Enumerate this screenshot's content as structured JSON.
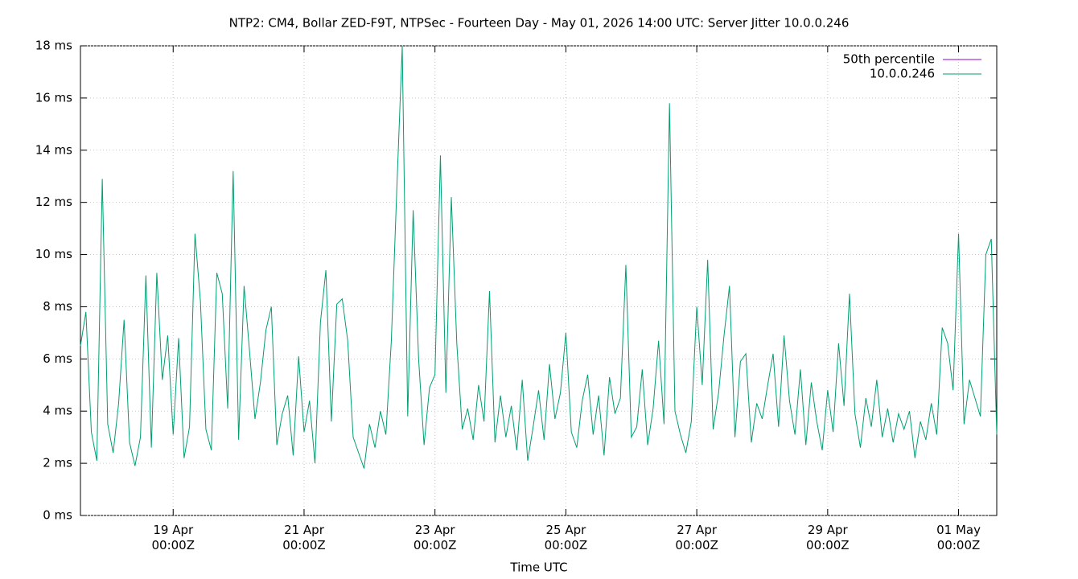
{
  "chart_data": {
    "type": "line",
    "title": "NTP2: CM4, Bollar ZED-F9T, NTPSec - Fourteen Day - May 01, 2026 14:00 UTC: Server Jitter 10.0.0.246",
    "x_label": "Time UTC",
    "xlim": [
      "2026-04-17T14:00Z",
      "2026-05-01T14:00Z"
    ],
    "xticks": [
      {
        "value": "2026-04-19T00:00Z",
        "label": "19 Apr\n00:00Z"
      },
      {
        "value": "2026-04-21T00:00Z",
        "label": "21 Apr\n00:00Z"
      },
      {
        "value": "2026-04-23T00:00Z",
        "label": "23 Apr\n00:00Z"
      },
      {
        "value": "2026-04-25T00:00Z",
        "label": "25 Apr\n00:00Z"
      },
      {
        "value": "2026-04-27T00:00Z",
        "label": "27 Apr\n00:00Z"
      },
      {
        "value": "2026-04-29T00:00Z",
        "label": "29 Apr\n00:00Z"
      },
      {
        "value": "2026-05-01T00:00Z",
        "label": "01 May\n00:00Z"
      }
    ],
    "ylim": [
      0,
      18
    ],
    "yticks": [
      {
        "value": 0,
        "label": "0 ms"
      },
      {
        "value": 2,
        "label": "2 ms"
      },
      {
        "value": 4,
        "label": "4 ms"
      },
      {
        "value": 6,
        "label": "6 ms"
      },
      {
        "value": 8,
        "label": "8 ms"
      },
      {
        "value": 10,
        "label": "10 ms"
      },
      {
        "value": 12,
        "label": "12 ms"
      },
      {
        "value": 14,
        "label": "14 ms"
      },
      {
        "value": 16,
        "label": "16 ms"
      },
      {
        "value": 18,
        "label": "18 ms"
      }
    ],
    "grid": true,
    "legend": "top-right",
    "x": [
      "2026-04-17T14:00Z",
      "2026-04-17T16:00Z",
      "2026-04-17T18:00Z",
      "2026-04-17T20:00Z",
      "2026-04-17T22:00Z",
      "2026-04-18T00:00Z",
      "2026-04-18T02:00Z",
      "2026-04-18T04:00Z",
      "2026-04-18T06:00Z",
      "2026-04-18T08:00Z",
      "2026-04-18T10:00Z",
      "2026-04-18T12:00Z",
      "2026-04-18T14:00Z",
      "2026-04-18T16:00Z",
      "2026-04-18T18:00Z",
      "2026-04-18T20:00Z",
      "2026-04-18T22:00Z",
      "2026-04-19T00:00Z",
      "2026-04-19T02:00Z",
      "2026-04-19T04:00Z",
      "2026-04-19T06:00Z",
      "2026-04-19T08:00Z",
      "2026-04-19T10:00Z",
      "2026-04-19T12:00Z",
      "2026-04-19T14:00Z",
      "2026-04-19T16:00Z",
      "2026-04-19T18:00Z",
      "2026-04-19T20:00Z",
      "2026-04-19T22:00Z",
      "2026-04-20T00:00Z",
      "2026-04-20T02:00Z",
      "2026-04-20T04:00Z",
      "2026-04-20T06:00Z",
      "2026-04-20T08:00Z",
      "2026-04-20T10:00Z",
      "2026-04-20T12:00Z",
      "2026-04-20T14:00Z",
      "2026-04-20T16:00Z",
      "2026-04-20T18:00Z",
      "2026-04-20T20:00Z",
      "2026-04-20T22:00Z",
      "2026-04-21T00:00Z",
      "2026-04-21T02:00Z",
      "2026-04-21T04:00Z",
      "2026-04-21T06:00Z",
      "2026-04-21T08:00Z",
      "2026-04-21T10:00Z",
      "2026-04-21T12:00Z",
      "2026-04-21T14:00Z",
      "2026-04-21T16:00Z",
      "2026-04-21T18:00Z",
      "2026-04-21T20:00Z",
      "2026-04-21T22:00Z",
      "2026-04-22T00:00Z",
      "2026-04-22T02:00Z",
      "2026-04-22T04:00Z",
      "2026-04-22T06:00Z",
      "2026-04-22T08:00Z",
      "2026-04-22T10:00Z",
      "2026-04-22T12:00Z",
      "2026-04-22T14:00Z",
      "2026-04-22T16:00Z",
      "2026-04-22T18:00Z",
      "2026-04-22T20:00Z",
      "2026-04-22T22:00Z",
      "2026-04-23T00:00Z",
      "2026-04-23T02:00Z",
      "2026-04-23T04:00Z",
      "2026-04-23T06:00Z",
      "2026-04-23T08:00Z",
      "2026-04-23T10:00Z",
      "2026-04-23T12:00Z",
      "2026-04-23T14:00Z",
      "2026-04-23T16:00Z",
      "2026-04-23T18:00Z",
      "2026-04-23T20:00Z",
      "2026-04-23T22:00Z",
      "2026-04-24T00:00Z",
      "2026-04-24T02:00Z",
      "2026-04-24T04:00Z",
      "2026-04-24T06:00Z",
      "2026-04-24T08:00Z",
      "2026-04-24T10:00Z",
      "2026-04-24T12:00Z",
      "2026-04-24T14:00Z",
      "2026-04-24T16:00Z",
      "2026-04-24T18:00Z",
      "2026-04-24T20:00Z",
      "2026-04-24T22:00Z",
      "2026-04-25T00:00Z",
      "2026-04-25T02:00Z",
      "2026-04-25T04:00Z",
      "2026-04-25T06:00Z",
      "2026-04-25T08:00Z",
      "2026-04-25T10:00Z",
      "2026-04-25T12:00Z",
      "2026-04-25T14:00Z",
      "2026-04-25T16:00Z",
      "2026-04-25T18:00Z",
      "2026-04-25T20:00Z",
      "2026-04-25T22:00Z",
      "2026-04-26T00:00Z",
      "2026-04-26T02:00Z",
      "2026-04-26T04:00Z",
      "2026-04-26T06:00Z",
      "2026-04-26T08:00Z",
      "2026-04-26T10:00Z",
      "2026-04-26T12:00Z",
      "2026-04-26T14:00Z",
      "2026-04-26T16:00Z",
      "2026-04-26T18:00Z",
      "2026-04-26T20:00Z",
      "2026-04-26T22:00Z",
      "2026-04-27T00:00Z",
      "2026-04-27T02:00Z",
      "2026-04-27T04:00Z",
      "2026-04-27T06:00Z",
      "2026-04-27T08:00Z",
      "2026-04-27T10:00Z",
      "2026-04-27T12:00Z",
      "2026-04-27T14:00Z",
      "2026-04-27T16:00Z",
      "2026-04-27T18:00Z",
      "2026-04-27T20:00Z",
      "2026-04-27T22:00Z",
      "2026-04-28T00:00Z",
      "2026-04-28T02:00Z",
      "2026-04-28T04:00Z",
      "2026-04-28T06:00Z",
      "2026-04-28T08:00Z",
      "2026-04-28T10:00Z",
      "2026-04-28T12:00Z",
      "2026-04-28T14:00Z",
      "2026-04-28T16:00Z",
      "2026-04-28T18:00Z",
      "2026-04-28T20:00Z",
      "2026-04-28T22:00Z",
      "2026-04-29T00:00Z",
      "2026-04-29T02:00Z",
      "2026-04-29T04:00Z",
      "2026-04-29T06:00Z",
      "2026-04-29T08:00Z",
      "2026-04-29T10:00Z",
      "2026-04-29T12:00Z",
      "2026-04-29T14:00Z",
      "2026-04-29T16:00Z",
      "2026-04-29T18:00Z",
      "2026-04-29T20:00Z",
      "2026-04-29T22:00Z",
      "2026-04-30T00:00Z",
      "2026-04-30T02:00Z",
      "2026-04-30T04:00Z",
      "2026-04-30T06:00Z",
      "2026-04-30T08:00Z",
      "2026-04-30T10:00Z",
      "2026-04-30T12:00Z",
      "2026-04-30T14:00Z",
      "2026-04-30T16:00Z",
      "2026-04-30T18:00Z",
      "2026-04-30T20:00Z",
      "2026-04-30T22:00Z",
      "2026-05-01T00:00Z",
      "2026-05-01T02:00Z",
      "2026-05-01T04:00Z",
      "2026-05-01T06:00Z",
      "2026-05-01T08:00Z",
      "2026-05-01T10:00Z",
      "2026-05-01T12:00Z",
      "2026-05-01T14:00Z"
    ],
    "series": [
      {
        "name": "50th percentile",
        "color": "#9400d3",
        "values": [
          null,
          null,
          null,
          null,
          null,
          null,
          null,
          null,
          null,
          null,
          null,
          null,
          null,
          null,
          null,
          null,
          null,
          null,
          null,
          null,
          null,
          null,
          null,
          null,
          null,
          null,
          null,
          null,
          null,
          null,
          null,
          null,
          null,
          null,
          null,
          null,
          null,
          null,
          null,
          null,
          null,
          null,
          null,
          null,
          null,
          null,
          null,
          null,
          null,
          null,
          null,
          null,
          null,
          null,
          null,
          null,
          null,
          null,
          null,
          null,
          null,
          null,
          null,
          null,
          null,
          null,
          null,
          null,
          null,
          null,
          null,
          null,
          null,
          null,
          null,
          null,
          null,
          null,
          null,
          null,
          null,
          null,
          null,
          null,
          null,
          null,
          null,
          null,
          null,
          null,
          null,
          null,
          null,
          null,
          null,
          null,
          null,
          null,
          null,
          null,
          null,
          null,
          null,
          null,
          null,
          null,
          null,
          null,
          null,
          null,
          null,
          null,
          null,
          null,
          null,
          null,
          null,
          null,
          null,
          null,
          null,
          null,
          null,
          null,
          null,
          null,
          null,
          null,
          null,
          null,
          null,
          null,
          null,
          null,
          null,
          null,
          null,
          null,
          null,
          null,
          null,
          null,
          null,
          null,
          null,
          null,
          null,
          null,
          null,
          null,
          null,
          null,
          null,
          null,
          null,
          null,
          null,
          null,
          null,
          null,
          null,
          null,
          null,
          null,
          null,
          null,
          null,
          null,
          null
        ]
      },
      {
        "name": "10.0.0.246",
        "color": "#009e73",
        "values": [
          6.5,
          7.8,
          3.2,
          2.1,
          12.9,
          3.5,
          2.4,
          4.3,
          7.5,
          2.8,
          1.9,
          3.0,
          9.2,
          2.6,
          9.3,
          5.2,
          6.9,
          3.1,
          6.8,
          2.2,
          3.4,
          10.8,
          8.2,
          3.3,
          2.5,
          9.3,
          8.5,
          4.1,
          13.2,
          2.9,
          8.8,
          6.3,
          3.7,
          5.1,
          7.1,
          8.0,
          2.7,
          3.9,
          4.6,
          2.3,
          6.1,
          3.2,
          4.4,
          2.0,
          7.4,
          9.4,
          3.6,
          8.1,
          8.3,
          6.7,
          3.0,
          2.4,
          1.8,
          3.5,
          2.6,
          4.0,
          3.1,
          6.7,
          12.5,
          18.0,
          3.8,
          11.7,
          6.0,
          2.7,
          4.9,
          5.4,
          13.8,
          4.7,
          12.2,
          6.6,
          3.3,
          4.1,
          2.9,
          5.0,
          3.6,
          8.6,
          2.8,
          4.6,
          3.0,
          4.2,
          2.5,
          5.2,
          2.1,
          3.4,
          4.8,
          2.9,
          5.8,
          3.7,
          4.7,
          7.0,
          3.2,
          2.6,
          4.4,
          5.4,
          3.1,
          4.6,
          2.3,
          5.3,
          3.9,
          4.5,
          9.6,
          3.0,
          3.4,
          5.6,
          2.7,
          4.1,
          6.7,
          3.5,
          15.8,
          4.0,
          3.1,
          2.4,
          3.6,
          8.0,
          5.0,
          9.8,
          3.3,
          4.7,
          6.9,
          8.8,
          3.0,
          5.9,
          6.2,
          2.8,
          4.3,
          3.7,
          5.0,
          6.2,
          3.4,
          6.9,
          4.4,
          3.1,
          5.6,
          2.7,
          5.1,
          3.6,
          2.5,
          4.8,
          3.2,
          6.6,
          4.2,
          8.5,
          3.9,
          2.6,
          4.5,
          3.4,
          5.2,
          3.0,
          4.1,
          2.8,
          3.9,
          3.3,
          4.0,
          2.2,
          3.6,
          2.9,
          4.3,
          3.1,
          7.2,
          6.6,
          4.8,
          10.8,
          3.5,
          5.2,
          4.5,
          3.8,
          10.0,
          10.6,
          3.1
        ]
      }
    ]
  }
}
